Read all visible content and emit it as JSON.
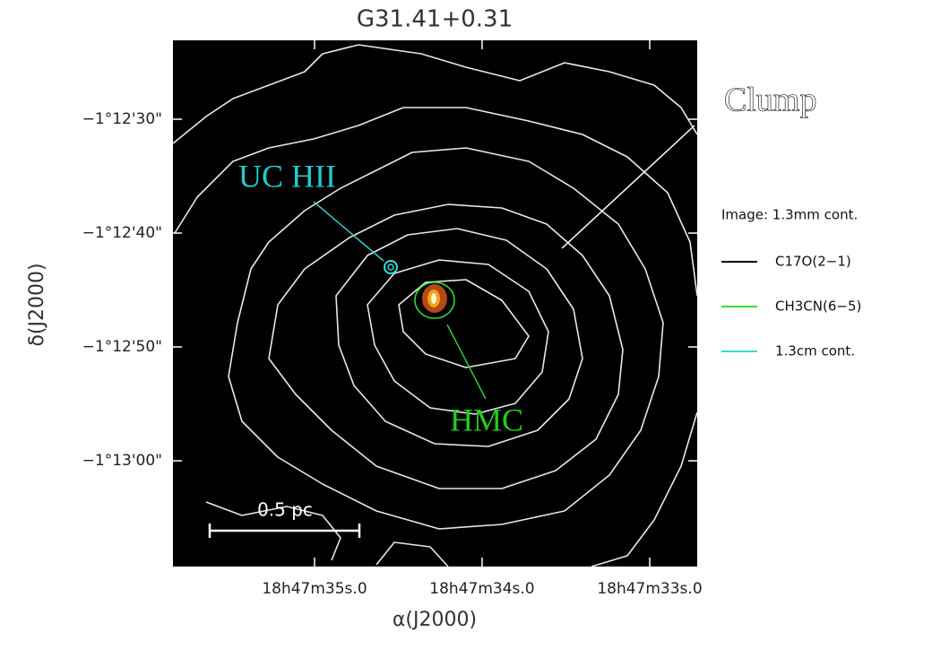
{
  "chart_data": {
    "type": "contour",
    "title": "G31.41+0.31",
    "xlabel": "α(J2000)",
    "ylabel": "δ(J2000)",
    "xlim": [
      281.899353,
      281.886319
    ],
    "ylim": [
      -1.219247,
      -1.206408
    ],
    "xticks": [
      {
        "value": 281.895833,
        "label": "18h47m35s.0"
      },
      {
        "value": 281.891667,
        "label": "18h47m34s.0"
      },
      {
        "value": 281.8875,
        "label": "18h47m33s.0"
      }
    ],
    "yticks": [
      {
        "value": -1.208333,
        "label": "−1°12'30\""
      },
      {
        "value": -1.211111,
        "label": "−1°12'40\""
      },
      {
        "value": -1.213889,
        "label": "−1°12'50\""
      },
      {
        "value": -1.216667,
        "label": "−1°13'00\""
      }
    ],
    "legend_title": "Image: 1.3mm cont.",
    "series": [
      {
        "name": "C17O(2−1)",
        "color": "#000000"
      },
      {
        "name": "CH3CN(6−5)",
        "color": "#33dd33"
      },
      {
        "name": "1.3cm cont.",
        "color": "#33dddd"
      }
    ],
    "annotations": [
      {
        "text": "Clump",
        "color": "#ffffff"
      },
      {
        "text": "UC HII",
        "color": "#22cccc"
      },
      {
        "text": "HMC",
        "color": "#22cc22"
      }
    ],
    "scale_bar": "0.5 pc"
  }
}
